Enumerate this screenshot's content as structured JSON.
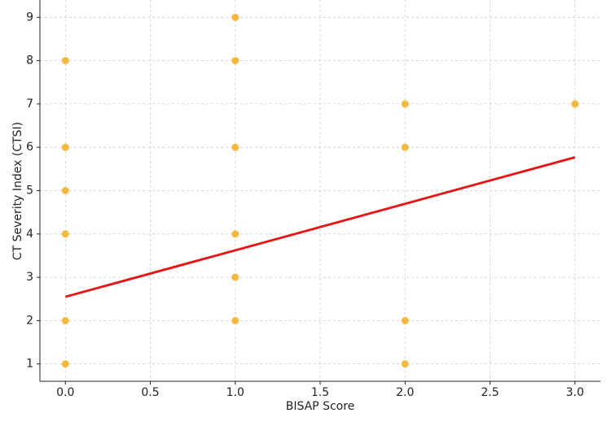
{
  "chart_data": {
    "type": "scatter",
    "xlabel": "BISAP Score",
    "ylabel": "CT Severity Index (CTSI)",
    "xlim": [
      -0.15,
      3.15
    ],
    "ylim": [
      0.6,
      9.4
    ],
    "xticks": [
      {
        "value": 0,
        "label": "0.0"
      },
      0.5,
      {
        "value": 1,
        "label": "1.0"
      },
      1.5,
      {
        "value": 2,
        "label": "2.0"
      },
      2.5,
      {
        "value": 3,
        "label": "3.0"
      }
    ],
    "yticks": [
      1,
      2,
      3,
      4,
      5,
      6,
      7,
      8,
      9
    ],
    "grid": true,
    "series": [
      {
        "type": "scatter",
        "color": "#f5b12a",
        "x": [
          0,
          0,
          0,
          0,
          0,
          0,
          1,
          1,
          1,
          1,
          1,
          1,
          2,
          2,
          2,
          2,
          3
        ],
        "values": [
          8,
          6,
          5,
          4,
          2,
          1,
          9,
          8,
          6,
          4,
          3,
          2,
          7,
          6,
          2,
          1,
          7
        ]
      },
      {
        "type": "line",
        "color": "#ee1111",
        "x": [
          0,
          3
        ],
        "values": [
          2.55,
          5.77
        ]
      }
    ]
  }
}
